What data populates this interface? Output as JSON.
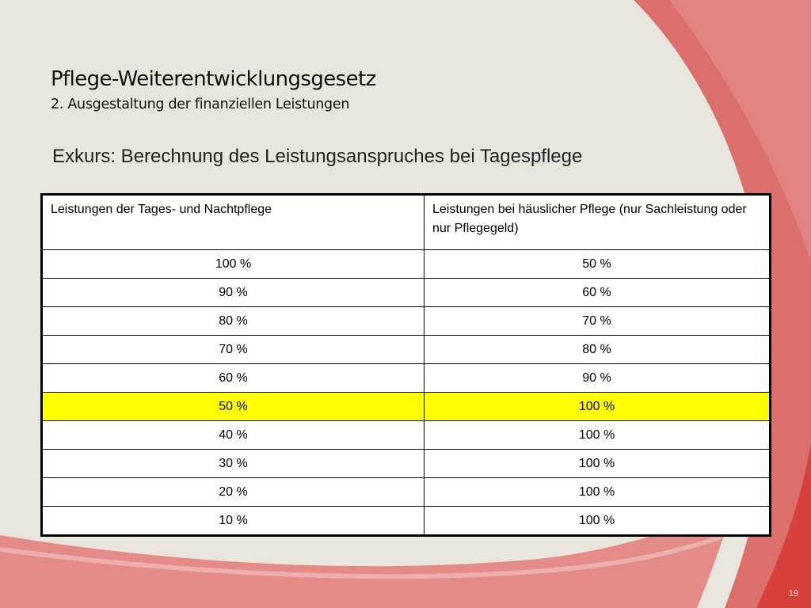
{
  "slide": {
    "title": "Pflege-Weiterentwicklungsgesetz",
    "subtitle": "2. Ausgestaltung der finanziellen Leistungen",
    "excursus": "Exkurs: Berechnung des Leistungsanspruches bei Tagespflege",
    "page_number": "19",
    "colors": {
      "background": "#e8e6dc",
      "accent_red": "#d9433f",
      "highlight_yellow": "#ffff00"
    }
  },
  "table": {
    "headers": [
      "Leistungen der Tages- und Nachtpflege",
      "Leistungen bei häuslicher Pflege (nur Sachleistung oder nur Pflegegeld)"
    ],
    "rows": [
      [
        "100 %",
        "50 %"
      ],
      [
        "90 %",
        "60 %"
      ],
      [
        "80 %",
        "70 %"
      ],
      [
        "70 %",
        "80 %"
      ],
      [
        "60 %",
        "90 %"
      ],
      [
        "50 %",
        "100 %"
      ],
      [
        "40 %",
        "100 %"
      ],
      [
        "30 %",
        "100 %"
      ],
      [
        "20 %",
        "100 %"
      ],
      [
        "10 %",
        "100 %"
      ]
    ],
    "highlighted_row_index": 5
  }
}
